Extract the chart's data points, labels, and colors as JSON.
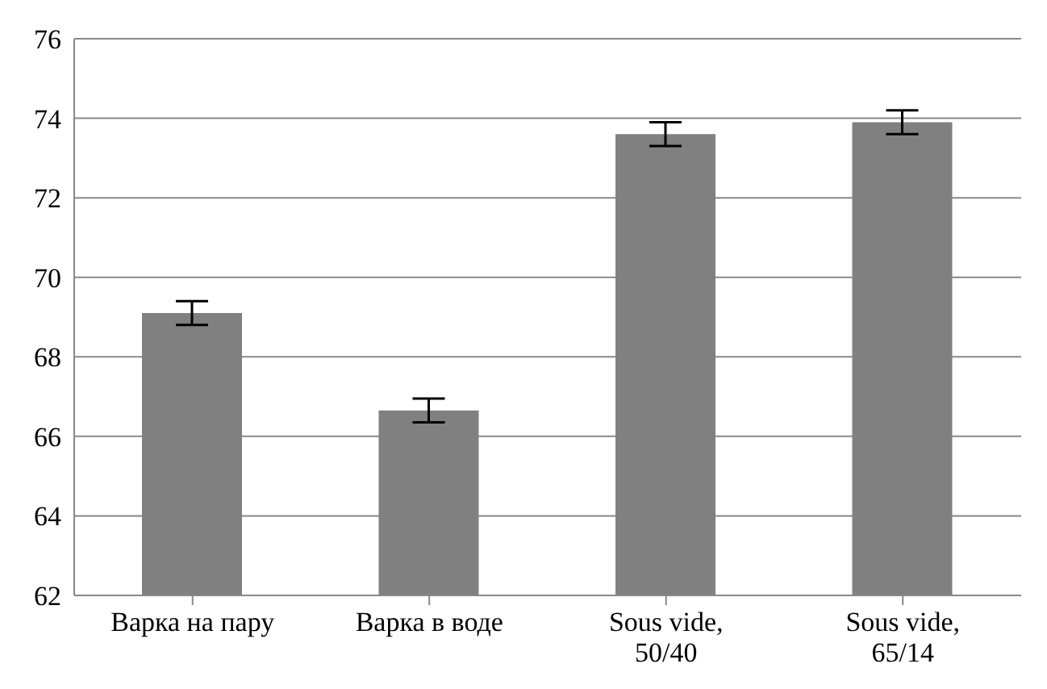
{
  "chart_data": {
    "type": "bar",
    "categories": [
      "Варка на пару",
      "Варка в воде",
      "Sous vide, 50/40",
      "Sous vide, 65/14"
    ],
    "values": [
      69.1,
      66.65,
      73.6,
      73.9
    ],
    "errors": [
      0.3,
      0.3,
      0.3,
      0.3
    ],
    "color": "#808080",
    "ylim": [
      62,
      76
    ],
    "yticks": [
      62,
      64,
      66,
      68,
      70,
      72,
      74,
      76
    ],
    "grid": "y"
  }
}
